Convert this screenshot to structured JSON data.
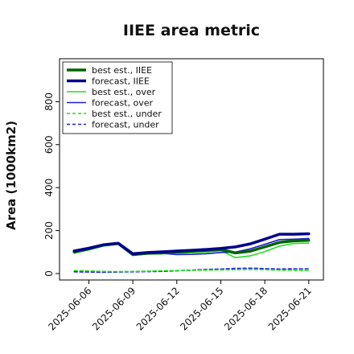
{
  "chart_data": {
    "type": "line",
    "title": "IIEE area metric",
    "xlabel": "",
    "ylabel": "Area (1000km2)",
    "ylim": [
      -30,
      1000
    ],
    "xlim": [
      "2025-06-04",
      "2025-06-22"
    ],
    "grid": false,
    "legend_position": "upper-left",
    "x": [
      "2025-06-05",
      "2025-06-06",
      "2025-06-07",
      "2025-06-08",
      "2025-06-09",
      "2025-06-10",
      "2025-06-11",
      "2025-06-12",
      "2025-06-13",
      "2025-06-14",
      "2025-06-15",
      "2025-06-16",
      "2025-06-17",
      "2025-06-18",
      "2025-06-19",
      "2025-06-20",
      "2025-06-21"
    ],
    "x_ticks": [
      {
        "date": "2025-06-06",
        "label": "2025-06-06",
        "color": "#000000"
      },
      {
        "date": "2025-06-09",
        "label": "2025-06-09",
        "color": "#000000"
      },
      {
        "date": "2025-06-12",
        "label": "2025-06-12",
        "color": "#2e8b2e"
      },
      {
        "date": "2025-06-15",
        "label": "2025-06-15",
        "color": "#000000"
      },
      {
        "date": "2025-06-18",
        "label": "2025-06-18",
        "color": "#000000"
      },
      {
        "date": "2025-06-21",
        "label": "2025-06-21",
        "color": "#000000"
      }
    ],
    "y_ticks": [
      0,
      200,
      400,
      600,
      800
    ],
    "series": [
      {
        "name": "best est., IIEE",
        "color": "#006400",
        "style": "solid",
        "width": 3.5,
        "values": [
          100,
          115,
          133,
          140,
          88,
          94,
          96,
          100,
          104,
          108,
          112,
          96,
          104,
          124,
          145,
          152,
          155
        ]
      },
      {
        "name": "forecast, IIEE",
        "color": "#00008b",
        "style": "solid",
        "width": 3.5,
        "values": [
          105,
          118,
          134,
          141,
          92,
          98,
          101,
          105,
          108,
          112,
          117,
          124,
          138,
          160,
          183,
          183,
          185
        ]
      },
      {
        "name": "best est., over",
        "color": "#22dd22",
        "style": "solid",
        "width": 1.6,
        "values": [
          95,
          110,
          128,
          136,
          85,
          91,
          92,
          94,
          97,
          100,
          106,
          74,
          82,
          102,
          128,
          140,
          142
        ]
      },
      {
        "name": "forecast, over",
        "color": "#1f1fd0",
        "style": "solid",
        "width": 1.6,
        "values": [
          100,
          113,
          130,
          138,
          88,
          92,
          94,
          88,
          89,
          92,
          98,
          100,
          115,
          136,
          158,
          160,
          163
        ]
      },
      {
        "name": "best est., under",
        "color": "#22dd22",
        "style": "dashed",
        "width": 1.6,
        "values": [
          14,
          12,
          10,
          9,
          10,
          11,
          13,
          14,
          15,
          16,
          17,
          18,
          19,
          18,
          16,
          15,
          14
        ]
      },
      {
        "name": "forecast, under",
        "color": "#1f1fd0",
        "style": "dashed",
        "width": 1.6,
        "values": [
          8,
          7,
          6,
          7,
          8,
          9,
          10,
          13,
          16,
          19,
          21,
          24,
          25,
          23,
          21,
          22,
          22
        ]
      }
    ]
  }
}
